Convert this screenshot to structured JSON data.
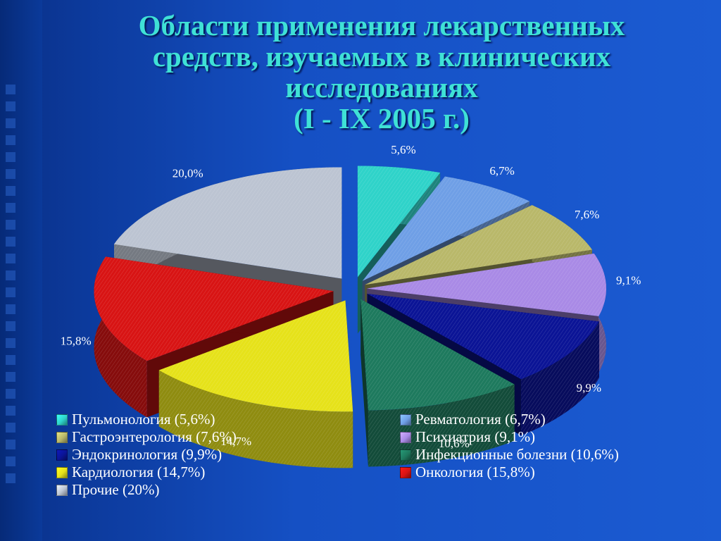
{
  "title_lines": [
    "Области применения лекарственных",
    "средств, изучаемых в клинических",
    "исследованиях",
    "(I - IX 2005 г.)"
  ],
  "chart_data": {
    "type": "pie",
    "title": "Области применения лекарственных средств, изучаемых в клинических исследованиях (I - IX 2005 г.)",
    "slices": [
      {
        "name": "Пульмонология",
        "value": 5.6,
        "label": "5,6%",
        "legend": "Пульмонология (5,6%)",
        "color": "#2fd3c9"
      },
      {
        "name": "Ревматология",
        "value": 6.7,
        "label": "6,7%",
        "legend": "Ревматология (6,7%)",
        "color": "#6f9fe6"
      },
      {
        "name": "Гастроэнтерология",
        "value": 7.6,
        "label": "7,6%",
        "legend": "Гастроэнтерология (7,6%)",
        "color": "#b9b86a"
      },
      {
        "name": "Психиатрия",
        "value": 9.1,
        "label": "9,1%",
        "legend": "Психиатрия (9,1%)",
        "color": "#a98ae6"
      },
      {
        "name": "Эндокринология",
        "value": 9.9,
        "label": "9,9%",
        "legend": "Эндокринология (9,9%)",
        "color": "#0b1496"
      },
      {
        "name": "Инфекционные болезни",
        "value": 10.6,
        "label": "10,6%",
        "legend": "Инфекционные болезни (10,6%)",
        "color": "#1e7a5e"
      },
      {
        "name": "Кардиология",
        "value": 14.7,
        "label": "14,7%",
        "legend": "Кардиология (14,7%)",
        "color": "#e6e21a"
      },
      {
        "name": "Онкология",
        "value": 15.8,
        "label": "15,8%",
        "legend": "Онкология (15,8%)",
        "color": "#d81414"
      },
      {
        "name": "Прочие",
        "value": 20.0,
        "label": "20,0%",
        "legend": "Прочие (20%)",
        "color": "#bcc4d2"
      }
    ],
    "legend_position": "bottom"
  }
}
